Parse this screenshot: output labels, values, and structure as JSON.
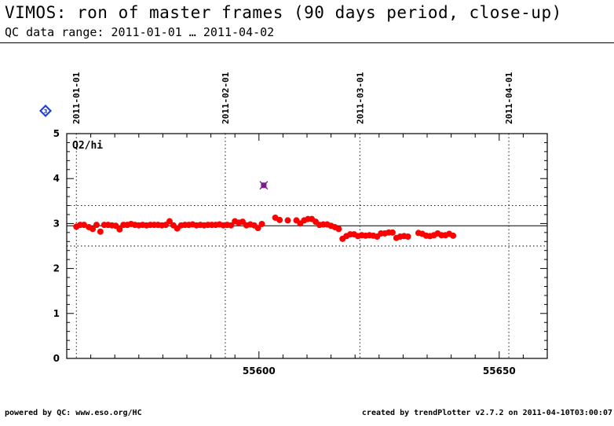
{
  "header": {
    "title": "VIMOS: ron of master frames (90 days period, close-up)",
    "subtitle": "QC data range: 2011-01-01 … 2011-04-02"
  },
  "footer": {
    "left": "powered by QC: www.eso.org/HC",
    "right": "created by trendPlotter v2.7.2 on 2011-04-10T03:00:07"
  },
  "badge": {
    "label": "3",
    "color": "#1a3fd6"
  },
  "colors": {
    "points": "#ff0000",
    "outlier": "#7a1f8a",
    "axes": "#000000"
  },
  "chart_data": {
    "type": "scatter",
    "series_label": "Q2/hi",
    "xlim": [
      55560,
      55660
    ],
    "ylim": [
      0,
      5
    ],
    "x_ticks": [
      55600,
      55650
    ],
    "y_ticks": [
      0,
      1,
      2,
      3,
      4,
      5
    ],
    "date_markers": [
      {
        "label": "2011-01-01",
        "x": 55562
      },
      {
        "label": "2011-02-01",
        "x": 55593
      },
      {
        "label": "2011-03-01",
        "x": 55621
      },
      {
        "label": "2011-04-01",
        "x": 55652
      }
    ],
    "mean_line": 2.95,
    "threshold_lines": [
      3.4,
      2.5
    ],
    "grid": "dotted verticals at date markers",
    "points": [
      [
        55562.0,
        2.93
      ],
      [
        55562.8,
        2.97
      ],
      [
        55563.6,
        2.97
      ],
      [
        55564.6,
        2.92
      ],
      [
        55565.4,
        2.88
      ],
      [
        55566.2,
        2.97
      ],
      [
        55567.0,
        2.82
      ],
      [
        55567.8,
        2.97
      ],
      [
        55568.6,
        2.97
      ],
      [
        55569.4,
        2.96
      ],
      [
        55570.2,
        2.95
      ],
      [
        55571.0,
        2.87
      ],
      [
        55571.8,
        2.97
      ],
      [
        55572.6,
        2.97
      ],
      [
        55573.4,
        2.99
      ],
      [
        55574.2,
        2.97
      ],
      [
        55575.0,
        2.96
      ],
      [
        55575.8,
        2.97
      ],
      [
        55576.6,
        2.96
      ],
      [
        55577.4,
        2.97
      ],
      [
        55578.2,
        2.97
      ],
      [
        55579.0,
        2.97
      ],
      [
        55579.8,
        2.96
      ],
      [
        55580.6,
        2.97
      ],
      [
        55581.4,
        3.05
      ],
      [
        55582.2,
        2.96
      ],
      [
        55583.0,
        2.89
      ],
      [
        55583.8,
        2.96
      ],
      [
        55584.6,
        2.97
      ],
      [
        55585.4,
        2.97
      ],
      [
        55586.2,
        2.98
      ],
      [
        55587.0,
        2.96
      ],
      [
        55587.8,
        2.97
      ],
      [
        55588.6,
        2.96
      ],
      [
        55589.4,
        2.97
      ],
      [
        55590.2,
        2.97
      ],
      [
        55591.0,
        2.97
      ],
      [
        55591.8,
        2.98
      ],
      [
        55592.6,
        2.96
      ],
      [
        55593.4,
        2.97
      ],
      [
        55594.2,
        2.96
      ],
      [
        55595.0,
        3.05
      ],
      [
        55595.8,
        3.02
      ],
      [
        55596.6,
        3.04
      ],
      [
        55597.4,
        2.96
      ],
      [
        55598.2,
        2.98
      ],
      [
        55599.0,
        2.96
      ],
      [
        55599.8,
        2.9
      ],
      [
        55600.6,
        2.99
      ],
      [
        55603.4,
        3.13
      ],
      [
        55604.3,
        3.08
      ],
      [
        55606.0,
        3.07
      ],
      [
        55607.8,
        3.07
      ],
      [
        55608.6,
        3.0
      ],
      [
        55609.4,
        3.07
      ],
      [
        55610.2,
        3.1
      ],
      [
        55611.0,
        3.1
      ],
      [
        55611.8,
        3.04
      ],
      [
        55612.6,
        2.97
      ],
      [
        55613.4,
        2.98
      ],
      [
        55614.2,
        2.98
      ],
      [
        55615.0,
        2.95
      ],
      [
        55615.8,
        2.92
      ],
      [
        55616.6,
        2.88
      ],
      [
        55617.4,
        2.66
      ],
      [
        55618.2,
        2.72
      ],
      [
        55619.0,
        2.76
      ],
      [
        55619.8,
        2.76
      ],
      [
        55620.6,
        2.72
      ],
      [
        55621.4,
        2.74
      ],
      [
        55622.2,
        2.73
      ],
      [
        55623.0,
        2.74
      ],
      [
        55623.8,
        2.73
      ],
      [
        55624.6,
        2.71
      ],
      [
        55625.4,
        2.78
      ],
      [
        55626.2,
        2.78
      ],
      [
        55627.0,
        2.8
      ],
      [
        55627.8,
        2.8
      ],
      [
        55628.6,
        2.68
      ],
      [
        55629.4,
        2.71
      ],
      [
        55630.2,
        2.72
      ],
      [
        55631.0,
        2.71
      ],
      [
        55633.2,
        2.79
      ],
      [
        55634.0,
        2.77
      ],
      [
        55634.8,
        2.73
      ],
      [
        55635.6,
        2.72
      ],
      [
        55636.4,
        2.74
      ],
      [
        55637.2,
        2.78
      ],
      [
        55638.0,
        2.74
      ],
      [
        55638.8,
        2.74
      ],
      [
        55639.6,
        2.77
      ],
      [
        55640.4,
        2.73
      ]
    ],
    "outliers": [
      [
        55601.0,
        3.85
      ]
    ]
  }
}
